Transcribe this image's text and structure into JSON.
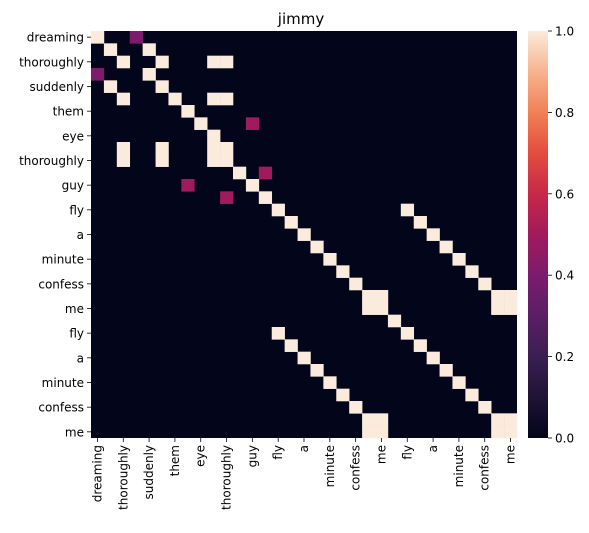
{
  "chart_data": {
    "type": "heatmap",
    "title": "jimmy",
    "labels": [
      "dreaming",
      "thoroughly",
      "thoroughly",
      "suddenly",
      "suddenly",
      "them",
      "them",
      "eye",
      "eye",
      "thoroughly",
      "thoroughly",
      "guy",
      "guy",
      "fly",
      "fly",
      "a",
      "a",
      "minute",
      "minute",
      "confess",
      "confess",
      "me",
      "me",
      "fly",
      "fly",
      "a",
      "a",
      "minute",
      "minute",
      "confess",
      "confess",
      "me",
      "me"
    ],
    "xtick_labels": [
      "dreaming",
      "thoroughly",
      "suddenly",
      "them",
      "eye",
      "thoroughly",
      "guy",
      "fly",
      "a",
      "minute",
      "confess",
      "me",
      "fly",
      "a",
      "minute",
      "confess",
      "me"
    ],
    "ytick_labels": [
      "dreaming",
      "thoroughly",
      "suddenly",
      "them",
      "eye",
      "thoroughly",
      "guy",
      "fly",
      "a",
      "minute",
      "confess",
      "me",
      "fly",
      "a",
      "minute",
      "confess",
      "me"
    ],
    "colorbar": {
      "min": 0.0,
      "max": 1.0,
      "ticks": [
        "0.0",
        "0.2",
        "0.4",
        "0.6",
        "0.8",
        "1.0"
      ],
      "colormap": "rocket"
    },
    "cells": [
      [
        0,
        0,
        1
      ],
      [
        0,
        3,
        0.4
      ],
      [
        1,
        1,
        1
      ],
      [
        1,
        4,
        1
      ],
      [
        2,
        2,
        1
      ],
      [
        2,
        5,
        1
      ],
      [
        2,
        9,
        1
      ],
      [
        2,
        10,
        1
      ],
      [
        3,
        0,
        0.4
      ],
      [
        3,
        4,
        1
      ],
      [
        4,
        1,
        1
      ],
      [
        4,
        5,
        1
      ],
      [
        5,
        2,
        1
      ],
      [
        5,
        6,
        1
      ],
      [
        5,
        9,
        1
      ],
      [
        5,
        10,
        1
      ],
      [
        6,
        7,
        1
      ],
      [
        7,
        8,
        1
      ],
      [
        7,
        12,
        0.5
      ],
      [
        8,
        9,
        1
      ],
      [
        9,
        2,
        1
      ],
      [
        9,
        5,
        1
      ],
      [
        9,
        9,
        1
      ],
      [
        9,
        10,
        1
      ],
      [
        10,
        2,
        1
      ],
      [
        10,
        5,
        1
      ],
      [
        10,
        9,
        1
      ],
      [
        10,
        10,
        1
      ],
      [
        11,
        11,
        1
      ],
      [
        11,
        13,
        0.5
      ],
      [
        12,
        7,
        0.5
      ],
      [
        12,
        12,
        1
      ],
      [
        13,
        10,
        0.5
      ],
      [
        13,
        13,
        1
      ],
      [
        14,
        14,
        1
      ],
      [
        14,
        24,
        1
      ],
      [
        15,
        15,
        1
      ],
      [
        15,
        25,
        1
      ],
      [
        16,
        16,
        1
      ],
      [
        16,
        26,
        1
      ],
      [
        17,
        17,
        1
      ],
      [
        17,
        27,
        1
      ],
      [
        18,
        18,
        1
      ],
      [
        18,
        28,
        1
      ],
      [
        19,
        19,
        1
      ],
      [
        19,
        29,
        1
      ],
      [
        20,
        20,
        1
      ],
      [
        20,
        30,
        1
      ],
      [
        21,
        21,
        1
      ],
      [
        21,
        22,
        1
      ],
      [
        21,
        31,
        1
      ],
      [
        21,
        32,
        1
      ],
      [
        22,
        21,
        1
      ],
      [
        22,
        22,
        1
      ],
      [
        22,
        31,
        1
      ],
      [
        22,
        32,
        1
      ],
      [
        23,
        23,
        1
      ],
      [
        24,
        14,
        1
      ],
      [
        24,
        24,
        1
      ],
      [
        25,
        15,
        1
      ],
      [
        25,
        25,
        1
      ],
      [
        26,
        16,
        1
      ],
      [
        26,
        26,
        1
      ],
      [
        27,
        17,
        1
      ],
      [
        27,
        27,
        1
      ],
      [
        28,
        18,
        1
      ],
      [
        28,
        28,
        1
      ],
      [
        29,
        19,
        1
      ],
      [
        29,
        29,
        1
      ],
      [
        30,
        20,
        1
      ],
      [
        30,
        30,
        1
      ],
      [
        31,
        21,
        1
      ],
      [
        31,
        22,
        1
      ],
      [
        31,
        31,
        1
      ],
      [
        31,
        32,
        1
      ],
      [
        32,
        21,
        1
      ],
      [
        32,
        22,
        1
      ],
      [
        32,
        31,
        1
      ],
      [
        32,
        32,
        1
      ]
    ]
  }
}
